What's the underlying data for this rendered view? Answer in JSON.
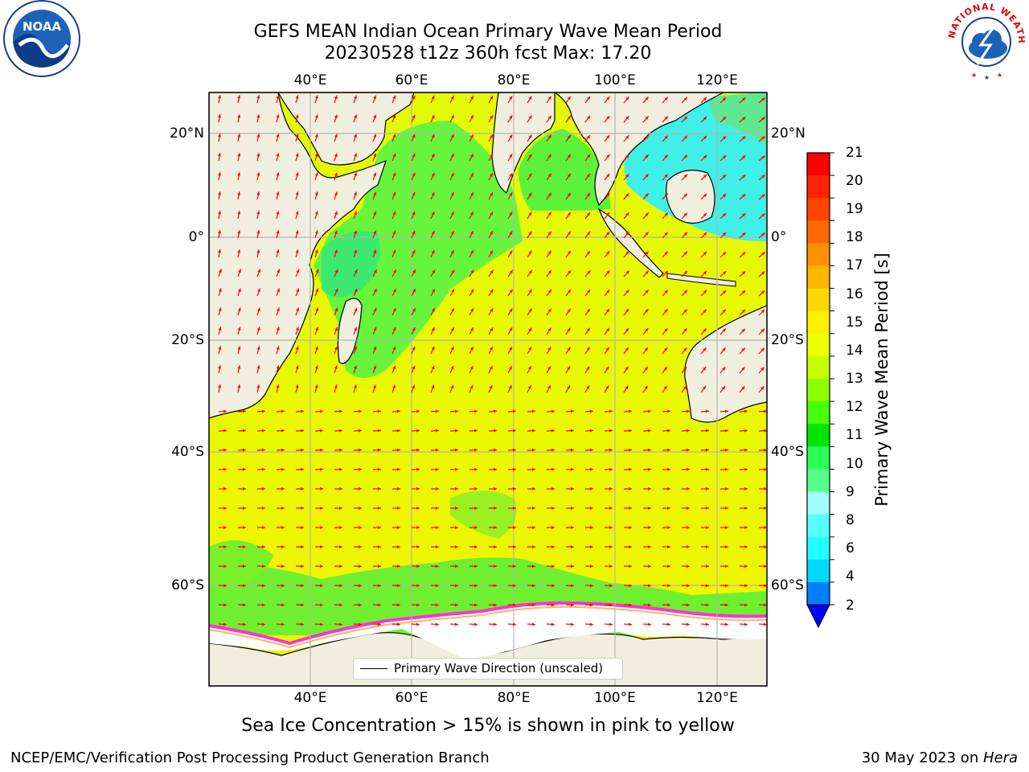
{
  "title": {
    "line1": "GEFS MEAN Indian Ocean Primary Wave Mean Period",
    "line2": "20230528 t12z 360h fcst   Max: 17.20"
  },
  "map": {
    "lon_ticks": [
      "40°E",
      "60°E",
      "80°E",
      "100°E",
      "120°E"
    ],
    "lat_ticks": [
      "20°N",
      "0°",
      "20°S",
      "40°S",
      "60°S"
    ],
    "colors": {
      "land": "#efeedf",
      "coast": "#000000",
      "arrow": "#ff0000",
      "grid": "#b4b4b4",
      "ice": "#ffffff"
    }
  },
  "legend": {
    "label": "Primary Wave Direction (unscaled)"
  },
  "colorbar": {
    "label": "Primary Wave Mean Period [s]",
    "ticks": [
      "21",
      "20",
      "19",
      "18",
      "17",
      "16",
      "15",
      "14",
      "13",
      "12",
      "11",
      "10",
      "9",
      "8",
      "6",
      "4",
      "2"
    ],
    "colors": [
      "#ff0000",
      "#ff2200",
      "#ff4400",
      "#ff6a00",
      "#ff9100",
      "#ffb400",
      "#ffd700",
      "#fff000",
      "#eaff00",
      "#c8ff00",
      "#8cff00",
      "#46ff0a",
      "#00e600",
      "#2cff5a",
      "#55ff8c",
      "#a0ffff",
      "#55ffff",
      "#22ffff",
      "#00d8ff",
      "#0080ff",
      "#0000ff"
    ]
  },
  "note": "Sea Ice Concentration > 15% is shown in pink to yellow",
  "footer": {
    "left": "NCEP/EMC/Verification Post Processing Product Generation Branch",
    "right_date": "30 May 2023 on ",
    "right_host": "Hera"
  },
  "logos": {
    "left": "NOAA",
    "right": "NATIONAL WEATHER SERVICE"
  }
}
